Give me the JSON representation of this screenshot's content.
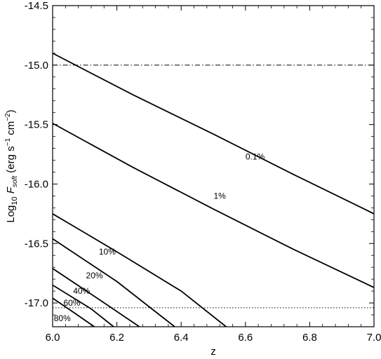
{
  "chart_data": {
    "type": "line",
    "xlabel": "z",
    "ylabel": {
      "prefix": "Log",
      "sub": "10",
      "var": "F",
      "var_sub": "soft",
      "units_open": "(erg s",
      "s_exp": "−1",
      "units_mid": " cm",
      "cm_exp": "−2",
      "units_close": ")"
    },
    "xlim": [
      6.0,
      7.0
    ],
    "ylim": [
      -17.2,
      -14.5
    ],
    "x_ticks": [
      6.0,
      6.2,
      6.4,
      6.6,
      6.8,
      7.0
    ],
    "x_tick_labels": [
      "6.0",
      "6.2",
      "6.4",
      "6.6",
      "6.8",
      "7.0"
    ],
    "y_ticks": [
      -14.5,
      -15.0,
      -15.5,
      -16.0,
      -16.5,
      -17.0
    ],
    "y_tick_labels": [
      "-14.5",
      "-15.0",
      "-15.5",
      "-16.0",
      "-16.5",
      "-17.0"
    ],
    "grid": false,
    "reference_lines": [
      {
        "y": -15.0,
        "style": "dash-dot"
      },
      {
        "y": -17.04,
        "style": "dotted"
      }
    ],
    "series": [
      {
        "label": "0.1%",
        "points": [
          [
            6.0,
            -14.9
          ],
          [
            6.25,
            -15.25
          ],
          [
            6.5,
            -15.58
          ],
          [
            6.75,
            -15.92
          ],
          [
            7.0,
            -16.25
          ]
        ],
        "label_at": [
          6.63,
          -15.77
        ]
      },
      {
        "label": "1%",
        "points": [
          [
            6.0,
            -15.49
          ],
          [
            6.25,
            -15.86
          ],
          [
            6.5,
            -16.21
          ],
          [
            6.75,
            -16.55
          ],
          [
            7.0,
            -16.87
          ]
        ],
        "label_at": [
          6.52,
          -16.1
        ]
      },
      {
        "label": "10%",
        "points": [
          [
            6.0,
            -16.25
          ],
          [
            6.2,
            -16.57
          ],
          [
            6.4,
            -16.9
          ],
          [
            6.54,
            -17.2
          ]
        ],
        "label_at": [
          6.17,
          -16.57
        ]
      },
      {
        "label": "20%",
        "points": [
          [
            6.0,
            -16.46
          ],
          [
            6.2,
            -16.82
          ],
          [
            6.38,
            -17.2
          ]
        ],
        "label_at": [
          6.13,
          -16.77
        ]
      },
      {
        "label": "40%",
        "points": [
          [
            6.0,
            -16.71
          ],
          [
            6.15,
            -16.98
          ],
          [
            6.27,
            -17.2
          ]
        ],
        "label_at": [
          6.09,
          -16.9
        ]
      },
      {
        "label": "60%",
        "points": [
          [
            6.0,
            -16.85
          ],
          [
            6.12,
            -17.05
          ],
          [
            6.19,
            -17.2
          ]
        ],
        "label_at": [
          6.06,
          -17.0
        ]
      },
      {
        "label": "80%",
        "points": [
          [
            6.0,
            -16.96
          ],
          [
            6.06,
            -17.07
          ],
          [
            6.13,
            -17.2
          ]
        ],
        "label_at": [
          6.03,
          -17.13
        ]
      }
    ]
  }
}
